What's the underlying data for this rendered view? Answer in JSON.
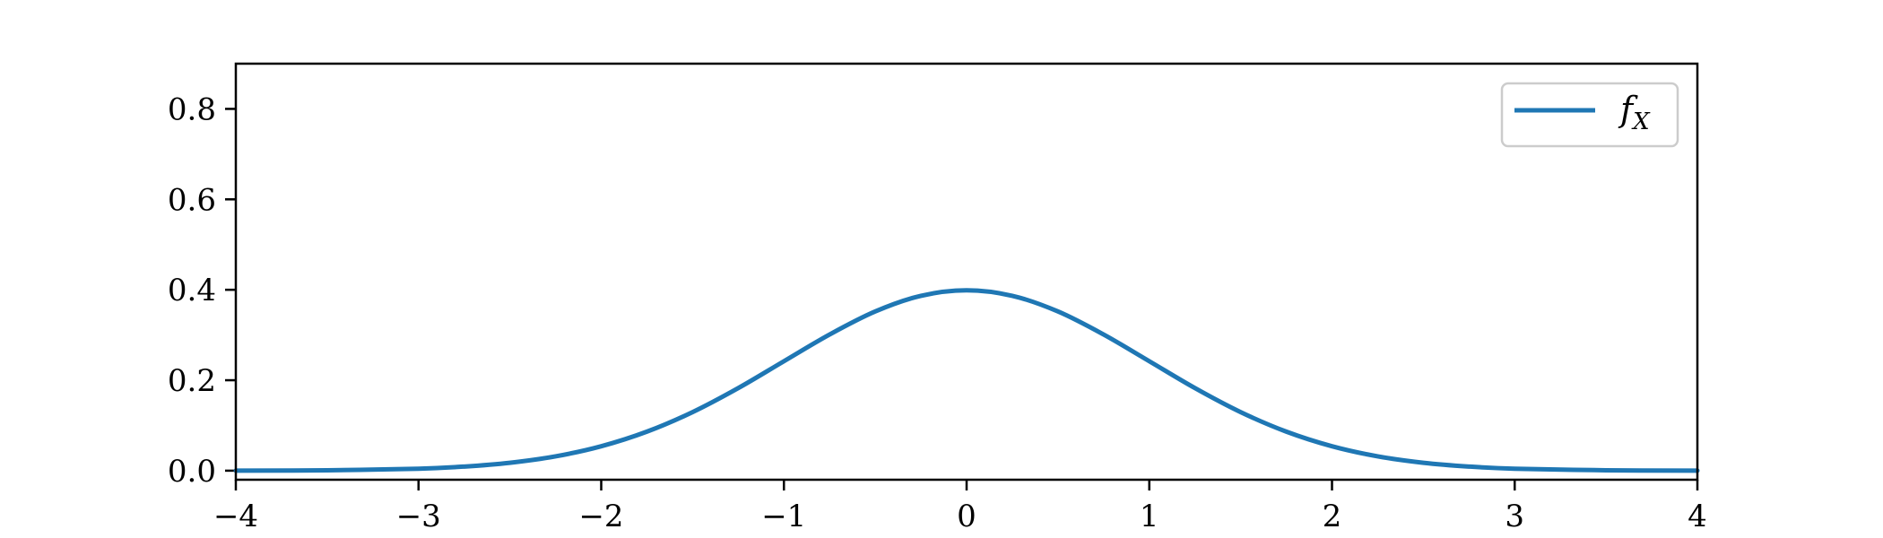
{
  "chart_data": {
    "type": "line",
    "title": "",
    "xlabel": "",
    "ylabel": "",
    "xlim": [
      -4,
      4
    ],
    "ylim": [
      -0.02,
      0.9
    ],
    "x_ticks": [
      -4,
      -3,
      -2,
      -1,
      0,
      1,
      2,
      3,
      4
    ],
    "x_tick_labels": [
      "−4",
      "−3",
      "−2",
      "−1",
      "0",
      "1",
      "2",
      "3",
      "4"
    ],
    "y_ticks": [
      0.0,
      0.2,
      0.4,
      0.6,
      0.8
    ],
    "y_tick_labels": [
      "0.0",
      "0.2",
      "0.4",
      "0.6",
      "0.8"
    ],
    "grid": false,
    "legend_position": "top-right",
    "legend": {
      "main": "f",
      "sub": "X"
    },
    "series": [
      {
        "name": "f_X",
        "color": "#1f77b4",
        "x": [
          -4.0,
          -3.5,
          -3.0,
          -2.75,
          -2.5,
          -2.25,
          -2.0,
          -1.75,
          -1.5,
          -1.25,
          -1.0,
          -0.75,
          -0.5,
          -0.25,
          0.0,
          0.25,
          0.5,
          0.75,
          1.0,
          1.25,
          1.5,
          1.75,
          2.0,
          2.25,
          2.5,
          2.75,
          3.0,
          3.5,
          4.0
        ],
        "y": [
          0.0001,
          0.0009,
          0.0044,
          0.0091,
          0.0175,
          0.0317,
          0.054,
          0.0863,
          0.1295,
          0.1826,
          0.242,
          0.3011,
          0.3521,
          0.3867,
          0.3989,
          0.3867,
          0.3521,
          0.3011,
          0.242,
          0.1826,
          0.1295,
          0.0863,
          0.054,
          0.0317,
          0.0175,
          0.0091,
          0.0044,
          0.0009,
          0.0001
        ]
      }
    ]
  }
}
